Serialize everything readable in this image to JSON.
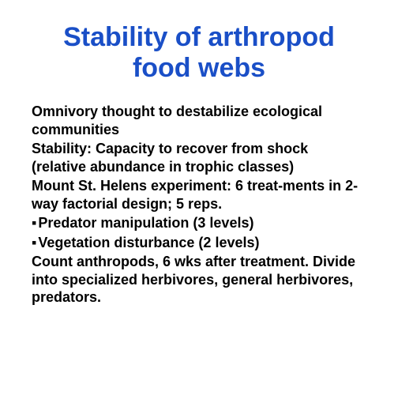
{
  "slide": {
    "title": "Stability of arthropod food webs",
    "paragraphs": {
      "p1": "Omnivory thought to destabilize ecological communities",
      "p2": "Stability: Capacity to recover from shock (relative abundance in trophic classes)",
      "p3": "Mount St. Helens experiment: 6 treat-ments in 2-way factorial design; 5 reps.",
      "b1": "Predator manipulation (3 levels)",
      "b2": "Vegetation disturbance (2 levels)",
      "p4": "Count anthropods, 6 wks after treatment. Divide into specialized herbivores, general herbivores, predators."
    },
    "colors": {
      "title_color": "#1a4fc7",
      "body_color": "#000000",
      "background": "#ffffff"
    },
    "typography": {
      "title_fontsize": 34,
      "body_fontsize": 18,
      "title_weight": "bold",
      "body_weight": "bold",
      "font_family": "Arial"
    }
  }
}
